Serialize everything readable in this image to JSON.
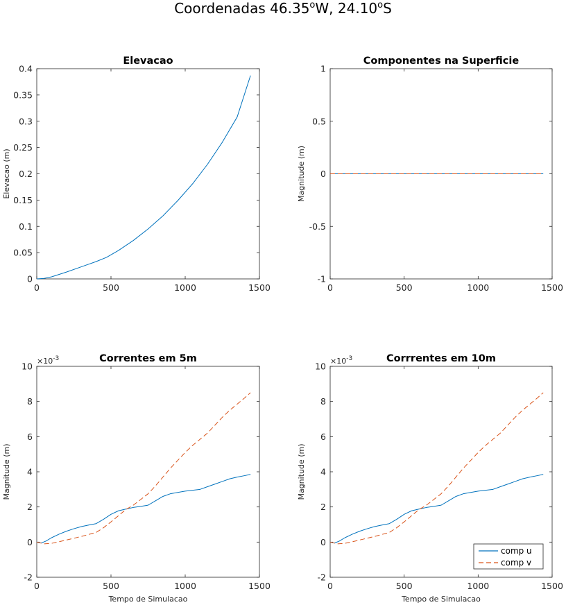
{
  "figure": {
    "title_main": "Coordenadas 46.35",
    "title_deg1": "o",
    "title_mid": "W, 24.10",
    "title_deg2": "o",
    "title_end": "S"
  },
  "colors": {
    "u": "#0072BD",
    "v": "#D95319",
    "axis": "#262626"
  },
  "chart_data": [
    {
      "type": "line",
      "title": "Elevacao",
      "xlabel": "",
      "ylabel": "Elevacao (m)",
      "xlim": [
        0,
        1500
      ],
      "ylim": [
        0,
        0.4
      ],
      "xticks": [
        0,
        500,
        1000,
        1500
      ],
      "yticks": [
        0,
        0.05,
        0.1,
        0.15,
        0.2,
        0.25,
        0.3,
        0.35,
        0.4
      ],
      "ytick_labels": [
        "0",
        "0.05",
        "0.1",
        "0.15",
        "0.2",
        "0.25",
        "0.3",
        "0.35",
        "0.4"
      ],
      "exponent": null,
      "legend": null,
      "series": [
        {
          "key": "u",
          "dash": false,
          "x": [
            0,
            50,
            100,
            200,
            300,
            400,
            470,
            550,
            650,
            750,
            850,
            950,
            1050,
            1150,
            1250,
            1350,
            1440
          ],
          "y": [
            0,
            0.001,
            0.004,
            0.013,
            0.023,
            0.033,
            0.041,
            0.054,
            0.073,
            0.095,
            0.12,
            0.149,
            0.181,
            0.218,
            0.26,
            0.308,
            0.387
          ]
        }
      ]
    },
    {
      "type": "line",
      "title": "Componentes na Superficie",
      "xlabel": "",
      "ylabel": "Magnitude (m)",
      "xlim": [
        0,
        1500
      ],
      "ylim": [
        -1,
        1
      ],
      "xticks": [
        0,
        500,
        1000,
        1500
      ],
      "yticks": [
        -1,
        -0.5,
        0,
        0.5,
        1
      ],
      "ytick_labels": [
        "-1",
        "-0.5",
        "0",
        "0.5",
        "1"
      ],
      "exponent": null,
      "legend": null,
      "series": [
        {
          "key": "u",
          "dash": false,
          "x": [
            0,
            1440
          ],
          "y": [
            0,
            0
          ]
        },
        {
          "key": "v",
          "dash": true,
          "x": [
            0,
            1440
          ],
          "y": [
            0,
            0
          ]
        }
      ]
    },
    {
      "type": "line",
      "title": "Correntes em 5m",
      "xlabel": "Tempo de Simulacao",
      "ylabel": "Magnitude (m)",
      "xlim": [
        0,
        1500
      ],
      "ylim": [
        -2,
        10
      ],
      "xticks": [
        0,
        500,
        1000,
        1500
      ],
      "yticks": [
        -2,
        0,
        2,
        4,
        6,
        8,
        10
      ],
      "ytick_labels": [
        "-2",
        "0",
        "2",
        "4",
        "6",
        "8",
        "10"
      ],
      "exponent": {
        "base": "×10",
        "power": "-3"
      },
      "legend": null,
      "series": [
        {
          "key": "u",
          "dash": false,
          "x": [
            0,
            30,
            60,
            100,
            150,
            200,
            250,
            300,
            350,
            400,
            450,
            500,
            550,
            600,
            650,
            700,
            750,
            800,
            850,
            900,
            1000,
            1050,
            1100,
            1150,
            1200,
            1250,
            1300,
            1350,
            1400,
            1440
          ],
          "y": [
            0,
            -0.05,
            0.05,
            0.25,
            0.45,
            0.62,
            0.76,
            0.88,
            0.97,
            1.05,
            1.3,
            1.58,
            1.78,
            1.88,
            1.97,
            2.03,
            2.1,
            2.35,
            2.6,
            2.75,
            2.9,
            2.95,
            3.0,
            3.15,
            3.3,
            3.45,
            3.6,
            3.7,
            3.78,
            3.85
          ]
        },
        {
          "key": "v",
          "dash": true,
          "x": [
            0,
            50,
            100,
            150,
            200,
            300,
            400,
            450,
            500,
            550,
            600,
            650,
            700,
            750,
            800,
            850,
            900,
            950,
            1000,
            1050,
            1100,
            1150,
            1200,
            1250,
            1300,
            1350,
            1400,
            1440
          ],
          "y": [
            0,
            -0.1,
            -0.07,
            0.02,
            0.12,
            0.32,
            0.55,
            0.82,
            1.15,
            1.5,
            1.85,
            2.1,
            2.42,
            2.75,
            3.2,
            3.7,
            4.2,
            4.65,
            5.1,
            5.5,
            5.85,
            6.2,
            6.65,
            7.1,
            7.5,
            7.85,
            8.2,
            8.5
          ]
        }
      ]
    },
    {
      "type": "line",
      "title": "Corrrentes em 10m",
      "xlabel": "Tempo de Simulacao",
      "ylabel": "Magnitude (m)",
      "xlim": [
        0,
        1500
      ],
      "ylim": [
        -2,
        10
      ],
      "xticks": [
        0,
        500,
        1000,
        1500
      ],
      "yticks": [
        -2,
        0,
        2,
        4,
        6,
        8,
        10
      ],
      "ytick_labels": [
        "-2",
        "0",
        "2",
        "4",
        "6",
        "8",
        "10"
      ],
      "exponent": {
        "base": "×10",
        "power": "-3"
      },
      "legend": {
        "position": "bottom-right",
        "entries": [
          "comp u",
          "comp v"
        ]
      },
      "series": [
        {
          "key": "u",
          "dash": false,
          "x": [
            0,
            30,
            60,
            100,
            150,
            200,
            250,
            300,
            350,
            400,
            450,
            500,
            550,
            600,
            650,
            700,
            750,
            800,
            850,
            900,
            1000,
            1050,
            1100,
            1150,
            1200,
            1250,
            1300,
            1350,
            1400,
            1440
          ],
          "y": [
            0,
            -0.05,
            0.05,
            0.25,
            0.45,
            0.62,
            0.76,
            0.88,
            0.97,
            1.05,
            1.3,
            1.58,
            1.78,
            1.88,
            1.97,
            2.03,
            2.1,
            2.35,
            2.6,
            2.75,
            2.9,
            2.95,
            3.0,
            3.15,
            3.3,
            3.45,
            3.6,
            3.7,
            3.78,
            3.85
          ]
        },
        {
          "key": "v",
          "dash": true,
          "x": [
            0,
            50,
            100,
            150,
            200,
            300,
            400,
            450,
            500,
            550,
            600,
            650,
            700,
            750,
            800,
            850,
            900,
            950,
            1000,
            1050,
            1100,
            1150,
            1200,
            1250,
            1300,
            1350,
            1400,
            1440
          ],
          "y": [
            0,
            -0.1,
            -0.07,
            0.02,
            0.12,
            0.32,
            0.55,
            0.82,
            1.15,
            1.5,
            1.85,
            2.1,
            2.42,
            2.75,
            3.2,
            3.7,
            4.2,
            4.65,
            5.1,
            5.5,
            5.85,
            6.2,
            6.65,
            7.1,
            7.5,
            7.85,
            8.2,
            8.5
          ]
        }
      ]
    }
  ]
}
